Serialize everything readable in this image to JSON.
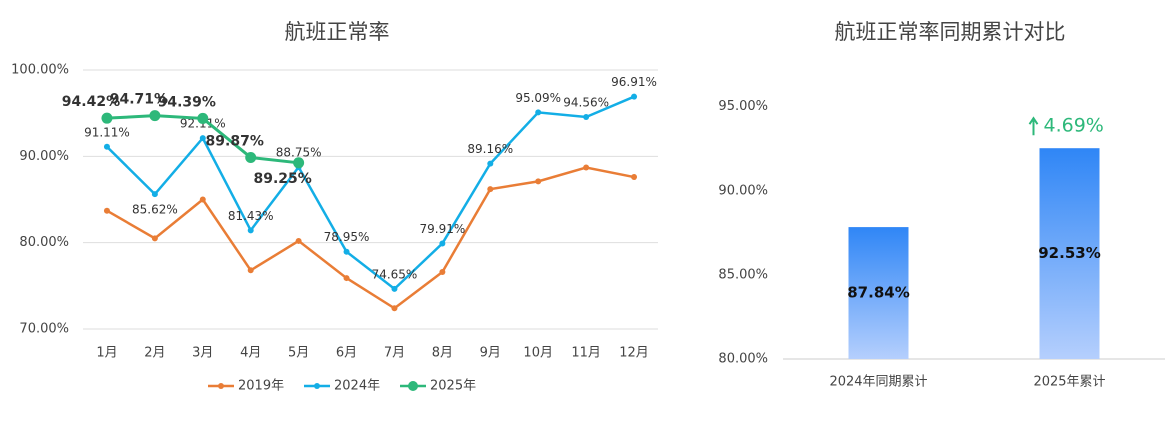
{
  "chart_data": [
    {
      "type": "line",
      "title": "航班正常率",
      "categories": [
        "1月",
        "2月",
        "3月",
        "4月",
        "5月",
        "6月",
        "7月",
        "8月",
        "9月",
        "10月",
        "11月",
        "12月"
      ],
      "series": [
        {
          "name": "2019年",
          "color": "#e97d36",
          "values": [
            83.7,
            80.5,
            85.0,
            76.8,
            80.2,
            75.9,
            72.4,
            76.6,
            86.2,
            87.1,
            88.7,
            87.6
          ]
        },
        {
          "name": "2024年",
          "color": "#13aee6",
          "values": [
            91.11,
            85.62,
            92.11,
            81.43,
            88.75,
            78.95,
            74.65,
            79.91,
            89.16,
            95.09,
            94.56,
            96.91
          ],
          "value_labels": [
            "91.11%",
            "85.62%",
            "92.11%",
            "81.43%",
            "88.75%",
            "78.95%",
            "74.65%",
            "79.91%",
            "89.16%",
            "95.09%",
            "94.56%",
            "96.91%"
          ]
        },
        {
          "name": "2025年",
          "color": "#2db87a",
          "values": [
            94.42,
            94.71,
            94.39,
            89.87,
            89.25,
            null,
            null,
            null,
            null,
            null,
            null,
            null
          ],
          "value_labels": [
            "94.42%",
            "94.71%",
            "94.39%",
            "89.87%",
            "89.25%",
            null,
            null,
            null,
            null,
            null,
            null,
            null
          ]
        }
      ],
      "ylim": [
        70,
        100
      ],
      "yticks": [
        {
          "value": 70,
          "label": "70.00%"
        },
        {
          "value": 80,
          "label": "80.00%"
        },
        {
          "value": 90,
          "label": "90.00%"
        },
        {
          "value": 100,
          "label": "100.00%"
        }
      ],
      "grid": true,
      "legend": "bottom"
    },
    {
      "type": "bar",
      "title": "航班正常率同期累计对比",
      "categories": [
        "2024年同期累计",
        "2025年累计"
      ],
      "values": [
        87.84,
        92.53
      ],
      "value_labels": [
        "87.84%",
        "92.53%"
      ],
      "color": "#3a8cf5",
      "annotation": "4.69%",
      "ylim": [
        80,
        97
      ],
      "yticks": [
        {
          "value": 80,
          "label": "80.00%"
        },
        {
          "value": 85,
          "label": "85.00%"
        },
        {
          "value": 90,
          "label": "90.00%"
        },
        {
          "value": 95,
          "label": "95.00%"
        }
      ],
      "grid": false
    }
  ]
}
